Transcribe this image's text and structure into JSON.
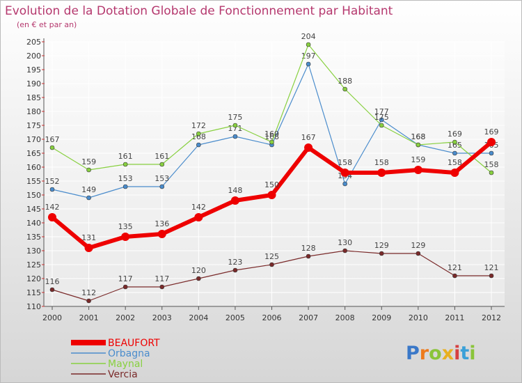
{
  "chart_data": {
    "type": "line",
    "title": "Evolution de la Dotation Globale de Fonctionnement par Habitant",
    "subtitle": "(en € et par an)",
    "xlabel": "",
    "ylabel": "",
    "categories": [
      "2000",
      "2001",
      "2002",
      "2003",
      "2004",
      "2005",
      "2006",
      "2007",
      "2008",
      "2009",
      "2010",
      "2011",
      "2012"
    ],
    "ylim": [
      110,
      205
    ],
    "yticks": [
      110,
      115,
      120,
      125,
      130,
      135,
      140,
      145,
      150,
      155,
      160,
      165,
      170,
      175,
      180,
      185,
      190,
      195,
      200,
      205
    ],
    "grid": true,
    "legend_position": "bottom-left",
    "series": [
      {
        "name": "BEAUFORT",
        "color": "#ee0000",
        "values": [
          142,
          131,
          135,
          136,
          142,
          148,
          150,
          167,
          158,
          158,
          159,
          158,
          169
        ]
      },
      {
        "name": "Orbagna",
        "color": "#4a8ccc",
        "values": [
          152,
          149,
          153,
          153,
          168,
          171,
          168,
          197,
          154,
          177,
          168,
          165,
          165
        ]
      },
      {
        "name": "Maynal",
        "color": "#88d040",
        "values": [
          167,
          159,
          161,
          161,
          172,
          175,
          169,
          204,
          188,
          175,
          168,
          169,
          158
        ]
      },
      {
        "name": "Vercia",
        "color": "#7a2a2a",
        "values": [
          116,
          112,
          117,
          117,
          120,
          123,
          125,
          128,
          130,
          129,
          129,
          121,
          121
        ]
      }
    ]
  },
  "branding": {
    "logo_text": "Proxiti"
  }
}
